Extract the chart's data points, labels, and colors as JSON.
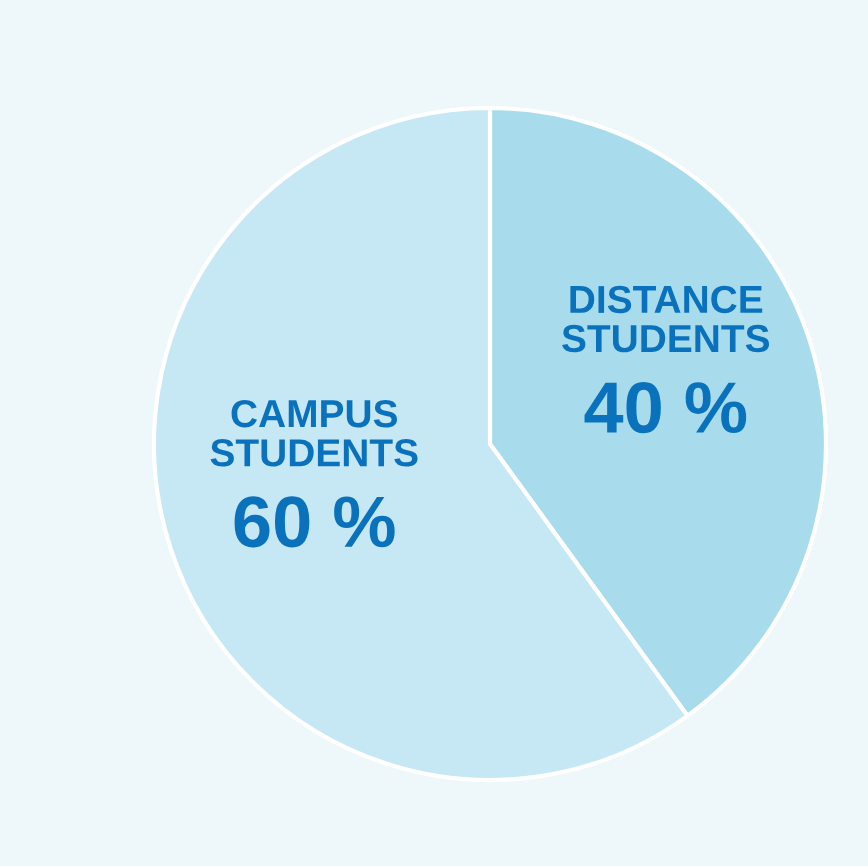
{
  "chart_data": {
    "type": "pie",
    "categories": [
      "DISTANCE\nSTUDENTS",
      "CAMPUS\nSTUDENTS"
    ],
    "values": [
      40,
      60
    ],
    "colors": [
      "#a8dcec",
      "#c6e8f4"
    ],
    "value_labels": [
      "40 %",
      "60 %"
    ]
  }
}
